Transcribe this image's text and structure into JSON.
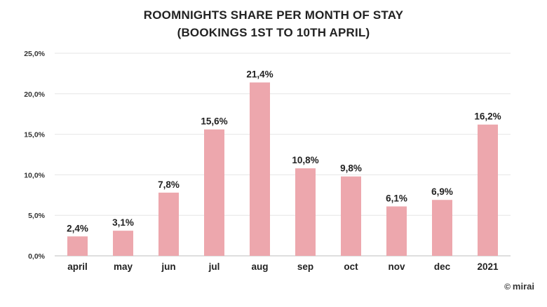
{
  "chart_data": {
    "type": "bar",
    "title_line1": "ROOMNIGHTS SHARE PER MONTH OF STAY",
    "title_line2": "(BOOKINGS 1ST TO 10TH APRIL)",
    "xlabel": "",
    "ylabel": "",
    "categories": [
      "april",
      "may",
      "jun",
      "jul",
      "aug",
      "sep",
      "oct",
      "nov",
      "dec",
      "2021"
    ],
    "values": [
      2.4,
      3.1,
      7.8,
      15.6,
      21.4,
      10.8,
      9.8,
      6.1,
      6.9,
      16.2
    ],
    "data_labels": [
      "2,4%",
      "3,1%",
      "7,8%",
      "15,6%",
      "21,4%",
      "10,8%",
      "9,8%",
      "6,1%",
      "6,9%",
      "16,2%"
    ],
    "ylim": [
      0,
      25
    ],
    "yticks": [
      0,
      5,
      10,
      15,
      20,
      25
    ],
    "ytick_labels": [
      "0,0%",
      "5,0%",
      "10,0%",
      "15,0%",
      "20,0%",
      "25,0%"
    ],
    "grid": true,
    "bar_color": "#eda7ad",
    "grid_color": "#e6e6e6"
  },
  "credit": {
    "symbol": "©",
    "brand": "mirai"
  }
}
